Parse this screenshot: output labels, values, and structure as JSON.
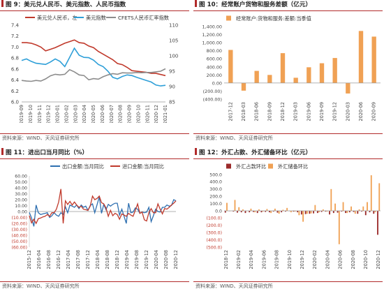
{
  "source_text": "资料来源：WIND、天风证券研究所",
  "chart_data": [
    {
      "id": "c1",
      "type": "line",
      "title": "图 9：美元兑人民币、美元指数、人民币指数",
      "x_tick_labels": [
        "2019-09",
        "2019-10",
        "2019-11",
        "2019-12",
        "2020-01",
        "2020-02",
        "2020-03",
        "2020-04",
        "2020-05",
        "2020-06",
        "2020-07",
        "2020-08",
        "2020-09",
        "2020-10",
        "2020-11",
        "2020-12",
        "2021-01"
      ],
      "ylim_left": [
        6.0,
        7.4
      ],
      "yticks_left": [
        "6.0",
        "6.2",
        "6.4",
        "6.6",
        "6.8",
        "7.0",
        "7.2",
        "7.4"
      ],
      "ylim_right": [
        85,
        110
      ],
      "yticks_right": [
        "85",
        "90",
        "95",
        "100",
        "105",
        "110"
      ],
      "legend": "top",
      "series": [
        {
          "name": "美元兑人民币，左",
          "axis": "left",
          "color": "#c0392b",
          "values": [
            7.08,
            7.08,
            7.07,
            7.04,
            7.0,
            6.93,
            6.96,
            6.99,
            7.03,
            7.07,
            7.1,
            7.13,
            7.08,
            7.07,
            7.02,
            6.99,
            6.92,
            6.87,
            6.82,
            6.77,
            6.7,
            6.68,
            6.63,
            6.57,
            6.56,
            6.55,
            6.54,
            6.52,
            6.52,
            6.5,
            6.48
          ]
        },
        {
          "name": "美元指数",
          "axis": "right",
          "color": "#2e9fd8",
          "values": [
            98.5,
            99.0,
            98.2,
            97.6,
            97.4,
            97.2,
            98.0,
            99.0,
            98.2,
            96.5,
            99.5,
            102.5,
            100.2,
            99.5,
            99.4,
            98.6,
            97.2,
            96.5,
            95.0,
            93.0,
            92.5,
            93.3,
            93.8,
            93.6,
            93.0,
            92.5,
            92.0,
            91.5,
            90.5,
            90.2,
            90.4
          ]
        },
        {
          "name": "CFETS人民币汇率指数",
          "axis": "right",
          "color": "#8c8c8c",
          "values": [
            92.0,
            91.8,
            91.7,
            92.0,
            91.8,
            92.5,
            93.5,
            94.0,
            93.8,
            94.0,
            95.5,
            94.8,
            93.8,
            93.6,
            92.2,
            92.6,
            92.4,
            93.2,
            93.8,
            94.2,
            94.0,
            94.5,
            94.4,
            94.4,
            94.6,
            94.5,
            94.6,
            94.6,
            94.8,
            95.0,
            95.8
          ]
        }
      ]
    },
    {
      "id": "c2",
      "type": "bar",
      "title": "图 10：经常账户货物和服务差额（亿元）",
      "categories": [
        "2017-12",
        "2018-03",
        "2018-06",
        "2018-09",
        "2018-12",
        "2019-03",
        "2019-06",
        "2019-09",
        "2019-12",
        "2020-03",
        "2020-06",
        "2020-09"
      ],
      "x_tick_labels": [
        "2017-12",
        "2018-03",
        "2018-06",
        "2018-09",
        "2018-12",
        "2019-03",
        "2019-06",
        "2019-09",
        "2019-12",
        "2020-03",
        "2020-06",
        "2020-09"
      ],
      "ylim": [
        -400,
        1400
      ],
      "yticks": [
        "(400.00)",
        "(200.00)",
        "0.00",
        "200.00",
        "400.00",
        "600.00",
        "800.00",
        "1,000.00",
        "1,200.00",
        "1,400.00"
      ],
      "legend": "top-left",
      "series": [
        {
          "name": "经常账户:货物和服务:差额:当季值",
          "color": "#f0a154",
          "values": [
            820,
            -190,
            300,
            200,
            740,
            130,
            390,
            490,
            620,
            -260,
            1290,
            1150
          ]
        }
      ]
    },
    {
      "id": "c3",
      "type": "line",
      "title": "图 11：进出口当月同比（%）",
      "x_tick_labels": [
        "2015-12",
        "2016-04",
        "2016-08",
        "2016-12",
        "2017-04",
        "2017-08",
        "2017-12",
        "2018-04",
        "2018-08",
        "2018-12",
        "2019-04",
        "2019-08",
        "2019-12",
        "2020-04",
        "2020-08",
        "2020-12"
      ],
      "ylim": [
        -60,
        60
      ],
      "yticks": [
        "(60.00)",
        "(50.00)",
        "(40.00)",
        "(30.00)",
        "(20.00)",
        "(10.00)",
        "0.00",
        "10.00",
        "20.00",
        "30.00",
        "40.00",
        "50.00",
        "60.00"
      ],
      "legend": "top",
      "series": [
        {
          "name": "出口金额:当月同比",
          "color": "#2e6fb0",
          "values": [
            -1.5,
            -11,
            -25,
            11,
            -2,
            -5,
            -4,
            -3,
            -2,
            -10,
            -7,
            -2,
            -6,
            -8,
            -2,
            -5,
            8,
            -2,
            11,
            9,
            7,
            11,
            5,
            11,
            7,
            9,
            2,
            10,
            13,
            -2,
            11,
            25,
            -3,
            12,
            3,
            12,
            9,
            12,
            14,
            14,
            -6,
            4,
            -8,
            -20,
            14,
            -2,
            -1,
            6,
            4,
            -3,
            -1,
            -2,
            -1,
            7,
            -17,
            -7,
            4,
            0,
            -1,
            7,
            7,
            11,
            9,
            10,
            20,
            18
          ]
        },
        {
          "name": "进口金额:当月同比",
          "color": "#c0392b",
          "values": [
            -7,
            -19,
            -13,
            -20,
            -12,
            -11,
            -9,
            -8,
            -5,
            -8,
            -2,
            -2,
            4,
            16,
            38,
            -20,
            18,
            12,
            17,
            11,
            16,
            11,
            7,
            9,
            4,
            3,
            2,
            9,
            26,
            20,
            22,
            26,
            15,
            13,
            6,
            -8,
            2,
            -7,
            -3,
            -5,
            -13,
            -4,
            -6,
            -8,
            -3,
            -6,
            -8,
            2,
            13,
            -3,
            -1,
            -14,
            -16,
            -2,
            5,
            -2,
            -2,
            13,
            4,
            -4,
            5,
            4,
            7,
            11,
            14,
            18
          ]
        }
      ]
    },
    {
      "id": "c4",
      "type": "bar",
      "title": "图 12：外汇占款、外汇储备环比（亿元）",
      "x_tick_labels": [
        "2018-12",
        "2019-02",
        "2019-04",
        "2019-06",
        "2019-08",
        "2019-10",
        "2019-12",
        "2020-02",
        "2020-04",
        "2020-06",
        "2020-08",
        "2020-10",
        "2020-12"
      ],
      "ylim": [
        -500,
        500
      ],
      "yticks": [
        "(500.0)",
        "(400.0)",
        "(300.0)",
        "(200.0)",
        "(100.0)",
        "0.0",
        "100.0",
        "200.0",
        "300.0",
        "400.0",
        "500.0"
      ],
      "legend": "top-left",
      "series": [
        {
          "name": "外汇占款环比",
          "color": "#9b2a2a",
          "values": [
            -25,
            -5,
            -10,
            -25,
            -20,
            -30,
            -20,
            -15,
            -30,
            -20,
            -15,
            -20,
            -10,
            -25,
            -20,
            -10,
            -5,
            -10,
            -20,
            -50,
            -45,
            -40,
            -35,
            -30,
            -15,
            -10,
            -50,
            -30,
            -25,
            -10,
            -30,
            -20,
            -15,
            -40,
            -10,
            -60,
            -20,
            -40,
            -330
          ]
        },
        {
          "name": "外汇储备环比",
          "color": "#f0a154",
          "values": [
            110,
            0,
            150,
            50,
            20,
            -5,
            30,
            -20,
            20,
            -10,
            25,
            -30,
            30,
            -40,
            15,
            40,
            -20,
            -10,
            -60,
            -150,
            -40,
            -35,
            80,
            -20,
            20,
            -10,
            300,
            100,
            -460,
            120,
            -30,
            60,
            -40,
            20,
            60,
            120,
            490,
            -20,
            380
          ]
        }
      ]
    }
  ]
}
